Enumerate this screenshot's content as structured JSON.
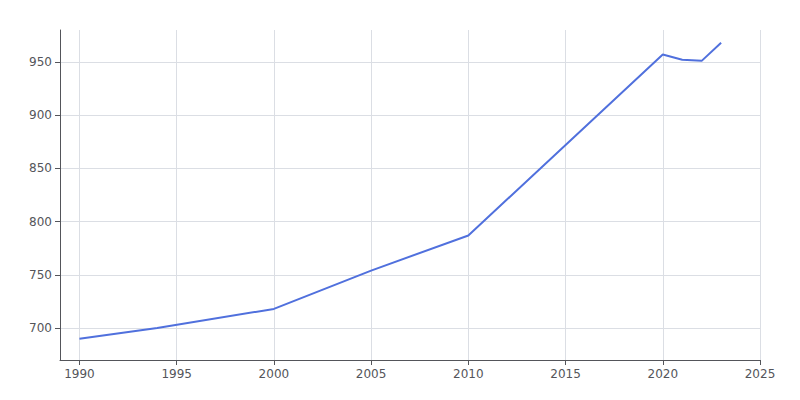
{
  "chart_data": {
    "type": "line",
    "x": [
      1990,
      1994,
      2000,
      2005,
      2010,
      2020,
      2021,
      2022,
      2023
    ],
    "values": [
      690,
      700,
      718,
      754,
      787,
      957,
      952,
      951,
      968
    ],
    "xlim": [
      1989,
      2025
    ],
    "ylim": [
      670,
      980
    ],
    "xticks": [
      1990,
      1995,
      2000,
      2005,
      2010,
      2015,
      2020,
      2025
    ],
    "yticks": [
      700,
      750,
      800,
      850,
      900,
      950
    ],
    "grid": true
  }
}
